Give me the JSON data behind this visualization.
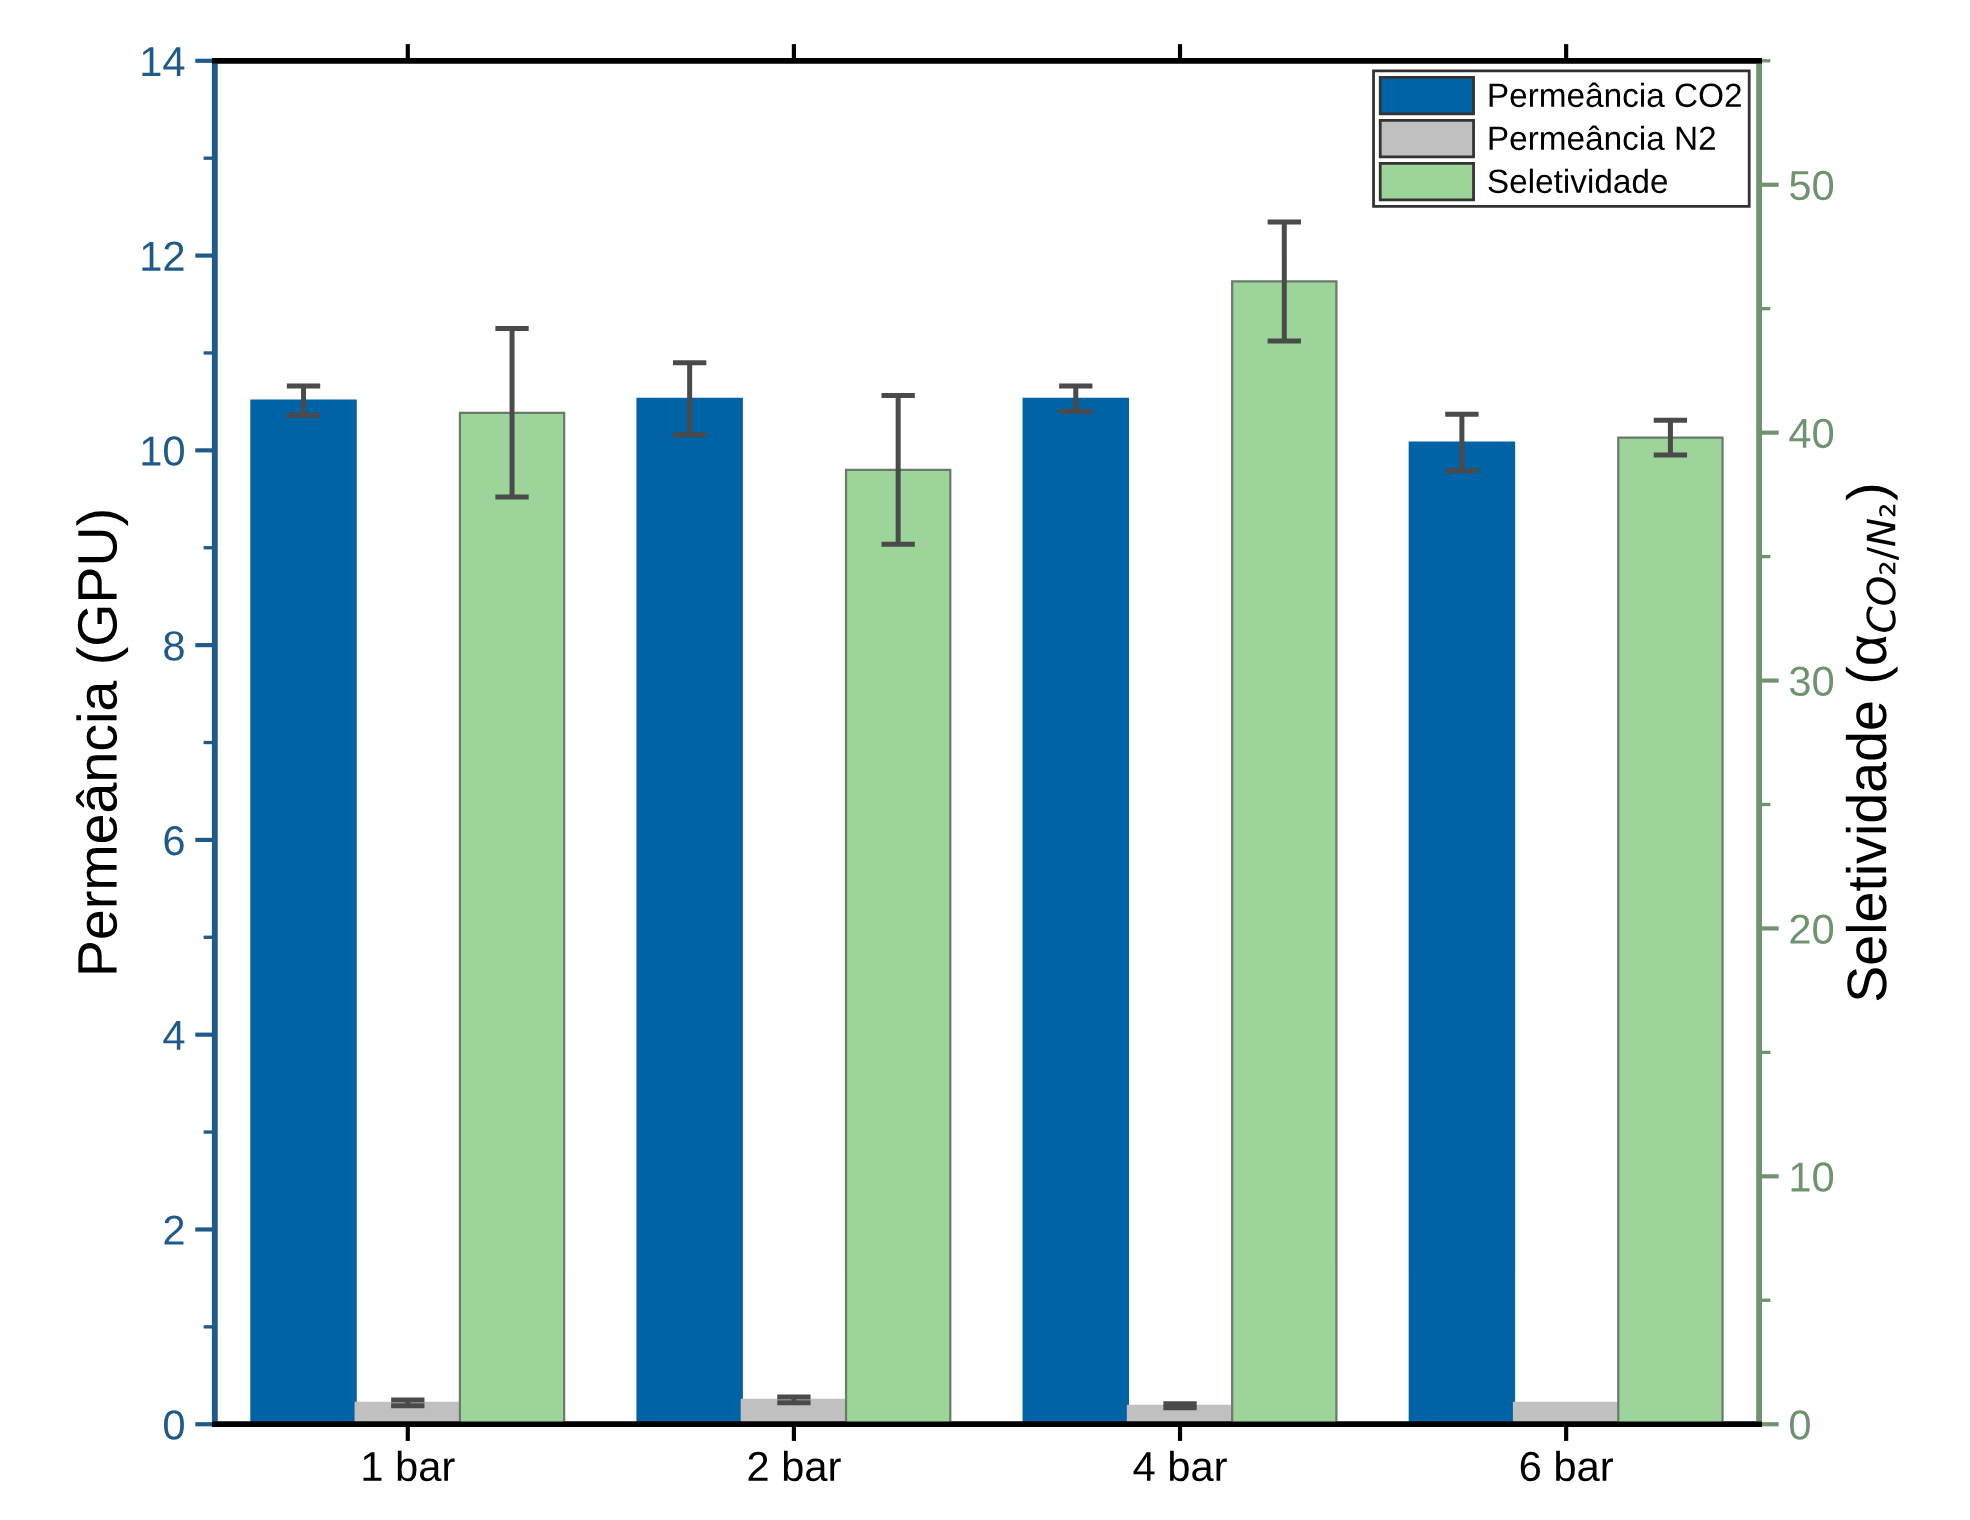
{
  "chart_data": {
    "type": "bar",
    "ylabel": "Permeância (GPU)",
    "y2label": "Seletividade (α$_{CO₂/N₂}$)",
    "categories": [
      "1 bar",
      "2 bar",
      "4 bar",
      "6 bar"
    ],
    "series": [
      {
        "name": "Permeância CO2",
        "color": "#0063a6",
        "values": [
          10.51,
          10.53,
          10.53,
          10.08
        ],
        "errors": [
          0.15,
          0.37,
          0.13,
          0.29
        ]
      },
      {
        "name": "Permeância N2",
        "color": "#c0c0c0",
        "values": [
          0.22,
          0.25,
          0.19,
          0.22
        ],
        "errors": [
          0.03,
          0.03,
          0.02,
          null
        ]
      },
      {
        "name": "Seletividade",
        "color": "#9dd49a",
        "values": [
          40.8,
          38.5,
          46.1,
          39.8
        ],
        "errors": [
          3.4,
          3.0,
          2.4,
          0.7
        ],
        "axis": "y2"
      }
    ],
    "ylim": [
      0,
      14
    ],
    "yticks": [
      0,
      2,
      4,
      6,
      8,
      10,
      12,
      14
    ],
    "y2lim": [
      0,
      55
    ],
    "y2ticks": [
      0,
      10,
      20,
      30,
      40,
      50
    ],
    "legend": "top right",
    "grid": false
  }
}
